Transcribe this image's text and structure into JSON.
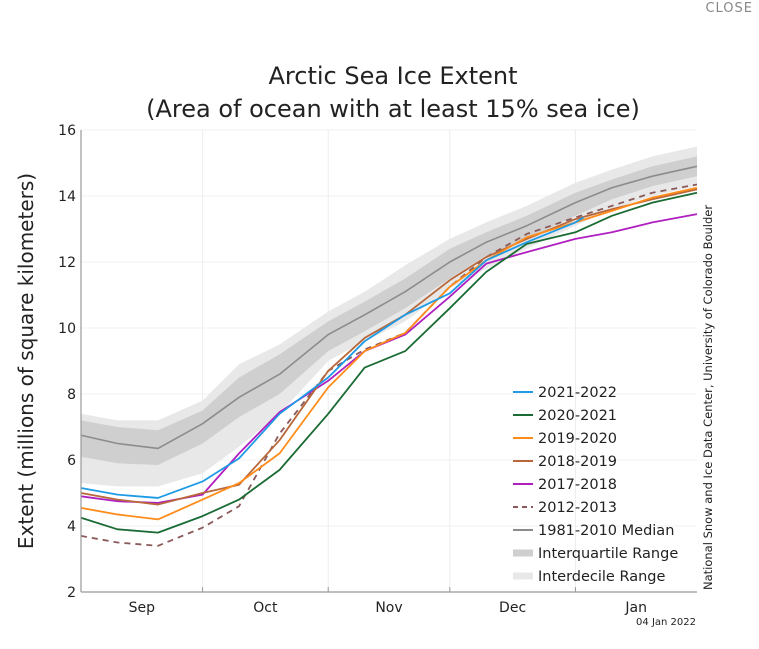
{
  "close_label": "CLOSE",
  "chart_data": {
    "type": "line",
    "title": "Arctic Sea Ice Extent",
    "subtitle": "(Area of ocean with at least 15% sea ice)",
    "ylabel": "Extent (millions of square kilometers)",
    "xlabel": "",
    "ylim": [
      2,
      16
    ],
    "yticks": [
      2,
      4,
      6,
      8,
      10,
      12,
      14,
      16
    ],
    "xlim": [
      "09-01",
      "01-31"
    ],
    "xtick_labels": [
      "Sep",
      "Oct",
      "Nov",
      "Dec",
      "Jan"
    ],
    "grid": true,
    "legend_placement": "bottom-right",
    "date_stamp": "04 Jan 2022",
    "credit": "National Snow and Ice Data Center, University of Colorado Boulder",
    "x": [
      "09-01",
      "09-10",
      "09-20",
      "10-01",
      "10-10",
      "10-20",
      "11-01",
      "11-10",
      "11-20",
      "12-01",
      "12-10",
      "12-20",
      "01-01",
      "01-10",
      "01-20",
      "01-31"
    ],
    "median": {
      "name": "1981-2010 Median",
      "color": "#8c8c8c",
      "values": [
        6.75,
        6.5,
        6.35,
        7.1,
        7.9,
        8.6,
        9.8,
        10.4,
        11.1,
        12.0,
        12.6,
        13.1,
        13.8,
        14.25,
        14.6,
        14.9
      ]
    },
    "interquartile": {
      "name": "Interquartile Range",
      "color": "#cfcfcf",
      "low": [
        6.1,
        5.9,
        5.85,
        6.5,
        7.3,
        8.0,
        9.3,
        9.9,
        10.6,
        11.5,
        12.2,
        12.7,
        13.4,
        13.9,
        14.3,
        14.6
      ],
      "high": [
        7.2,
        7.0,
        6.9,
        7.5,
        8.5,
        9.2,
        10.2,
        10.8,
        11.5,
        12.4,
        12.9,
        13.4,
        14.1,
        14.5,
        14.9,
        15.2
      ]
    },
    "interdecile": {
      "name": "Interdecile Range",
      "color": "#e8e8e8",
      "low": [
        5.3,
        5.2,
        5.2,
        5.6,
        6.4,
        7.4,
        9.0,
        9.6,
        10.2,
        11.2,
        11.8,
        12.4,
        13.1,
        13.6,
        14.0,
        14.3
      ],
      "high": [
        7.4,
        7.2,
        7.2,
        7.8,
        8.9,
        9.5,
        10.5,
        11.1,
        11.9,
        12.7,
        13.2,
        13.7,
        14.4,
        14.8,
        15.2,
        15.5
      ]
    },
    "series": [
      {
        "name": "2021-2022",
        "color": "#1f9be6",
        "dashed": false,
        "x": [
          "09-01",
          "09-10",
          "09-20",
          "10-01",
          "10-10",
          "10-20",
          "11-01",
          "11-10",
          "11-20",
          "12-01",
          "12-10",
          "12-20",
          "01-01",
          "01-03"
        ],
        "values": [
          5.15,
          4.95,
          4.85,
          5.35,
          6.05,
          7.4,
          8.5,
          9.6,
          10.4,
          11.05,
          12.05,
          12.6,
          13.2,
          13.35
        ]
      },
      {
        "name": "2020-2021",
        "color": "#1a6b34",
        "dashed": false,
        "values": [
          4.25,
          3.9,
          3.8,
          4.3,
          4.8,
          5.7,
          7.4,
          8.8,
          9.3,
          10.6,
          11.7,
          12.55,
          12.9,
          13.4,
          13.8,
          14.1
        ]
      },
      {
        "name": "2019-2020",
        "color": "#ff8c1a",
        "dashed": false,
        "values": [
          4.55,
          4.35,
          4.2,
          4.8,
          5.3,
          6.2,
          8.2,
          9.3,
          9.85,
          11.25,
          12.05,
          12.75,
          13.2,
          13.55,
          13.95,
          14.25
        ]
      },
      {
        "name": "2018-2019",
        "color": "#b8683a",
        "dashed": false,
        "values": [
          5.0,
          4.8,
          4.65,
          5.0,
          5.25,
          6.6,
          8.7,
          9.7,
          10.4,
          11.45,
          12.15,
          12.7,
          13.3,
          13.6,
          13.9,
          14.2
        ]
      },
      {
        "name": "2017-2018",
        "color": "#b020c0",
        "dashed": false,
        "values": [
          4.9,
          4.75,
          4.7,
          4.95,
          6.2,
          7.45,
          8.4,
          9.3,
          9.8,
          10.95,
          11.95,
          12.3,
          12.7,
          12.9,
          13.2,
          13.45
        ]
      },
      {
        "name": "2012-2013",
        "color": "#8a5a5a",
        "dashed": true,
        "values": [
          3.7,
          3.5,
          3.4,
          3.95,
          4.6,
          6.8,
          8.7,
          9.35,
          9.85,
          11.25,
          12.15,
          12.85,
          13.35,
          13.7,
          14.1,
          14.35
        ]
      }
    ]
  }
}
